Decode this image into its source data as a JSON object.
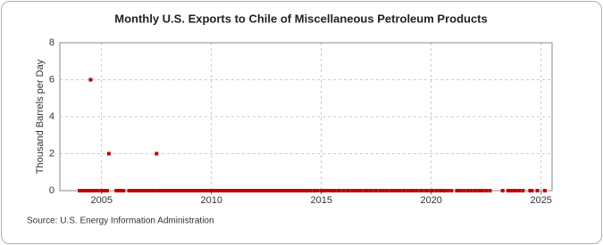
{
  "chart_data": {
    "type": "scatter",
    "title": "Monthly U.S. Exports to Chile of Miscellaneous Petroleum Products",
    "y_label": "Thousand Barrels per Day",
    "source": "Source: U.S. Energy Information Administration",
    "color": "#c00000",
    "grid": true,
    "xlim": [
      2003.1,
      2025.5
    ],
    "xticks": [
      2005,
      2010,
      2015,
      2020,
      2025
    ],
    "ylim": [
      0,
      8
    ],
    "yticks": [
      0,
      2,
      4,
      6,
      8
    ],
    "x": [
      2004,
      2004.08,
      2004.17,
      2004.25,
      2004.33,
      2004.42,
      2004.5,
      2004.58,
      2004.67,
      2004.83,
      2005,
      2005.08,
      2005.17,
      2005.25,
      2005.33,
      2005.67,
      2005.75,
      2005.83,
      2005.92,
      2006,
      2006.25,
      2006.33,
      2006.42,
      2006.58,
      2006.67,
      2006.75,
      2006.83,
      2006.92,
      2007,
      2007.08,
      2007.17,
      2007.25,
      2007.33,
      2007.42,
      2007.5,
      2007.58,
      2007.67,
      2007.75,
      2007.83,
      2007.92,
      2008,
      2008.08,
      2008.17,
      2008.25,
      2008.33,
      2008.42,
      2008.5,
      2008.58,
      2008.67,
      2008.75,
      2008.83,
      2008.92,
      2009,
      2009.08,
      2009.17,
      2009.25,
      2009.33,
      2009.42,
      2009.5,
      2009.58,
      2009.67,
      2009.75,
      2009.83,
      2009.92,
      2010,
      2010.08,
      2010.17,
      2010.25,
      2010.33,
      2010.42,
      2010.5,
      2010.58,
      2010.67,
      2010.75,
      2010.83,
      2010.92,
      2011,
      2011.08,
      2011.17,
      2011.25,
      2011.33,
      2011.42,
      2011.5,
      2011.58,
      2011.67,
      2011.75,
      2011.83,
      2011.92,
      2012,
      2012.08,
      2012.17,
      2012.25,
      2012.33,
      2012.42,
      2012.5,
      2012.58,
      2012.67,
      2012.75,
      2012.83,
      2012.92,
      2013,
      2013.08,
      2013.17,
      2013.25,
      2013.33,
      2013.42,
      2013.5,
      2013.58,
      2013.67,
      2013.75,
      2013.83,
      2013.92,
      2014,
      2014.08,
      2014.17,
      2014.25,
      2014.33,
      2014.42,
      2014.5,
      2014.67,
      2014.75,
      2014.83,
      2015,
      2015.08,
      2015.17,
      2015.33,
      2015.42,
      2015.58,
      2015.75,
      2015.83,
      2016,
      2016.17,
      2016.25,
      2016.42,
      2016.58,
      2016.67,
      2016.83,
      2017,
      2017.08,
      2017.25,
      2017.42,
      2017.5,
      2017.67,
      2017.83,
      2018,
      2018.17,
      2018.33,
      2018.42,
      2018.58,
      2018.75,
      2018.92,
      2019.08,
      2019.17,
      2019.33,
      2019.5,
      2019.58,
      2019.75,
      2019.83,
      2020,
      2020.08,
      2020.25,
      2020.42,
      2020.58,
      2020.75,
      2020.92,
      2021.17,
      2021.33,
      2021.5,
      2021.67,
      2021.83,
      2022,
      2022.17,
      2022.33,
      2022.5,
      2022.67,
      2023.25,
      2023.5,
      2023.58,
      2023.67,
      2023.83,
      2024,
      2024.17,
      2024.5,
      2024.58,
      2024.83,
      2025.17
    ],
    "values": [
      0,
      0,
      0,
      0,
      0,
      0,
      6,
      0,
      0,
      0,
      0,
      0,
      0,
      0,
      2,
      0,
      0,
      0,
      0,
      0,
      0,
      0,
      0,
      0,
      0,
      0,
      0,
      0,
      0,
      0,
      0,
      0,
      0,
      0,
      2,
      0,
      0,
      0,
      0,
      0,
      0,
      0,
      0,
      0,
      0,
      0,
      0,
      0,
      0,
      0,
      0,
      0,
      0,
      0,
      0,
      0,
      0,
      0,
      0,
      0,
      0,
      0,
      0,
      0,
      0,
      0,
      0,
      0,
      0,
      0,
      0,
      0,
      0,
      0,
      0,
      0,
      0,
      0,
      0,
      0,
      0,
      0,
      0,
      0,
      0,
      0,
      0,
      0,
      0,
      0,
      0,
      0,
      0,
      0,
      0,
      0,
      0,
      0,
      0,
      0,
      0,
      0,
      0,
      0,
      0,
      0,
      0,
      0,
      0,
      0,
      0,
      0,
      0,
      0,
      0,
      0,
      0,
      0,
      0,
      0,
      0,
      0,
      0,
      0,
      0,
      0,
      0,
      0,
      0,
      0,
      0,
      0,
      0,
      0,
      0,
      0,
      0,
      0,
      0,
      0,
      0,
      0,
      0,
      0,
      0,
      0,
      0,
      0,
      0,
      0,
      0,
      0,
      0,
      0,
      0,
      0,
      0,
      0,
      0,
      0,
      0,
      0,
      0,
      0,
      0,
      0,
      0,
      0,
      0,
      0,
      0,
      0,
      0,
      0,
      0,
      0,
      0,
      0,
      0,
      0,
      0,
      0,
      0,
      0,
      0,
      0
    ]
  }
}
